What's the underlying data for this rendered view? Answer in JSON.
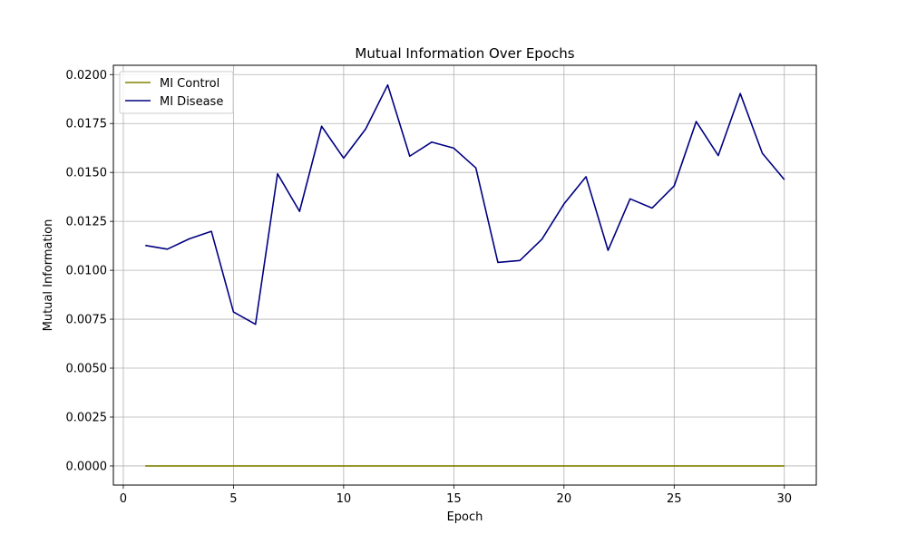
{
  "chart_data": {
    "type": "line",
    "title": "Mutual Information Over Epochs",
    "xlabel": "Epoch",
    "ylabel": "Mutual Information",
    "xlim": [
      -0.45,
      31.45
    ],
    "ylim": [
      -0.000975,
      0.020475
    ],
    "xticks": [
      0,
      5,
      10,
      15,
      20,
      25,
      30
    ],
    "xtick_labels": [
      "0",
      "5",
      "10",
      "15",
      "20",
      "25",
      "30"
    ],
    "yticks": [
      0,
      0.0025,
      0.005,
      0.0075,
      0.01,
      0.0125,
      0.015,
      0.0175,
      0.02
    ],
    "ytick_labels": [
      "0.0000",
      "0.0025",
      "0.0050",
      "0.0075",
      "0.0100",
      "0.0125",
      "0.0150",
      "0.0175",
      "0.0200"
    ],
    "grid": true,
    "legend_position": "top-left",
    "x": [
      1,
      2,
      3,
      4,
      5,
      6,
      7,
      8,
      9,
      10,
      11,
      12,
      13,
      14,
      15,
      16,
      17,
      18,
      19,
      20,
      21,
      22,
      23,
      24,
      25,
      26,
      27,
      28,
      29,
      30
    ],
    "series": [
      {
        "name": "MI Control",
        "color": "#808000",
        "values": [
          0,
          0,
          0,
          0,
          0,
          0,
          0,
          0,
          0,
          0,
          0,
          0,
          0,
          0,
          0,
          0,
          0,
          0,
          0,
          0,
          0,
          0,
          0,
          0,
          0,
          0,
          0,
          0,
          0,
          0
        ]
      },
      {
        "name": "MI Disease",
        "color": "#000080",
        "values": [
          0.01127,
          0.01108,
          0.01161,
          0.01199,
          0.00787,
          0.00724,
          0.01493,
          0.01301,
          0.01736,
          0.01573,
          0.01722,
          0.01947,
          0.01583,
          0.01655,
          0.01624,
          0.01523,
          0.0104,
          0.0105,
          0.01159,
          0.01339,
          0.01478,
          0.01102,
          0.01365,
          0.01318,
          0.01431,
          0.0176,
          0.01586,
          0.01903,
          0.01598,
          0.01463
        ]
      }
    ]
  }
}
